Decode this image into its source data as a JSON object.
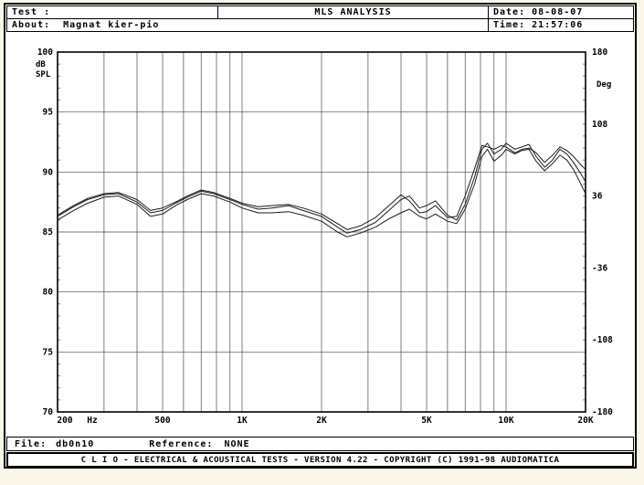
{
  "header": {
    "test_label": "Test :",
    "title": "MLS ANALYSIS",
    "date": "Date: 08-08-07",
    "about_label": "About:",
    "about_value": "Magnat kier-pio",
    "time": "Time: 21:57:06"
  },
  "file_bar": {
    "file_label": "File:",
    "file_value": "db0n10",
    "reference_label": "Reference:",
    "reference_value": "NONE"
  },
  "status_bar": {
    "text": "C L I O  -  ELECTRICAL & ACOUSTICAL TESTS  -  VERSION 4.22  -  COPYRIGHT (C) 1991-98 AUDIOMATICA"
  },
  "colors": {
    "page": "#faf7ea",
    "background": "#ffffff",
    "frame": "#000000",
    "grid": "#4a4a4a",
    "minor_tick": "#666666",
    "curve": "#1c1c1c",
    "text": "#000000"
  },
  "chart_data": {
    "type": "line",
    "title": "MLS ANALYSIS",
    "x_scale": "log",
    "xlim": [
      200,
      20000
    ],
    "ylim_left": [
      70,
      100
    ],
    "ylim_right": [
      -180,
      180
    ],
    "ylabel_left_lines": [
      "dB",
      "SPL"
    ],
    "ylabel_right": "Deg",
    "x_unit": "Hz",
    "x_tick_labels": [
      "200",
      "500",
      "1K",
      "2K",
      "5K",
      "10K",
      "20K"
    ],
    "x_tick_freqs": [
      200,
      500,
      1000,
      2000,
      5000,
      10000,
      20000
    ],
    "y_ticks_left": [
      100,
      95,
      90,
      85,
      80,
      75,
      70
    ],
    "y_ticks_right": [
      180,
      108,
      36,
      -36,
      -108,
      -180
    ],
    "grid_freqs": [
      300,
      400,
      500,
      600,
      700,
      800,
      900,
      1000,
      2000,
      3000,
      4000,
      5000,
      6000,
      7000,
      8000,
      9000,
      10000,
      20000
    ],
    "grid_on": true,
    "legend": "none",
    "series": [
      {
        "name": "response-curve-1",
        "points": [
          [
            200,
            86.3
          ],
          [
            230,
            87.1
          ],
          [
            260,
            87.7
          ],
          [
            300,
            88.1
          ],
          [
            340,
            88.2
          ],
          [
            400,
            87.5
          ],
          [
            450,
            86.6
          ],
          [
            500,
            86.8
          ],
          [
            560,
            87.4
          ],
          [
            620,
            87.9
          ],
          [
            700,
            88.4
          ],
          [
            780,
            88.2
          ],
          [
            900,
            87.7
          ],
          [
            1000,
            87.3
          ],
          [
            1150,
            86.9
          ],
          [
            1300,
            87.0
          ],
          [
            1500,
            87.2
          ],
          [
            1700,
            86.8
          ],
          [
            2000,
            86.3
          ],
          [
            2300,
            85.4
          ],
          [
            2500,
            84.9
          ],
          [
            2800,
            85.2
          ],
          [
            3200,
            85.8
          ],
          [
            3600,
            86.8
          ],
          [
            4000,
            87.7
          ],
          [
            4300,
            88.0
          ],
          [
            4700,
            87.0
          ],
          [
            5000,
            87.2
          ],
          [
            5400,
            87.6
          ],
          [
            6000,
            86.4
          ],
          [
            6500,
            86.0
          ],
          [
            7000,
            87.3
          ],
          [
            7600,
            89.6
          ],
          [
            8100,
            91.9
          ],
          [
            8500,
            92.4
          ],
          [
            9000,
            91.5
          ],
          [
            9600,
            91.9
          ],
          [
            10000,
            92.4
          ],
          [
            10800,
            91.9
          ],
          [
            11500,
            92.1
          ],
          [
            12200,
            92.3
          ],
          [
            13000,
            91.3
          ],
          [
            14000,
            90.4
          ],
          [
            15000,
            91.0
          ],
          [
            16000,
            91.9
          ],
          [
            17000,
            91.5
          ],
          [
            18000,
            90.8
          ],
          [
            19000,
            90.0
          ],
          [
            20000,
            89.2
          ]
        ]
      },
      {
        "name": "response-curve-2",
        "points": [
          [
            200,
            86.0
          ],
          [
            230,
            86.8
          ],
          [
            260,
            87.4
          ],
          [
            300,
            87.9
          ],
          [
            340,
            88.0
          ],
          [
            400,
            87.3
          ],
          [
            450,
            86.3
          ],
          [
            500,
            86.5
          ],
          [
            560,
            87.2
          ],
          [
            620,
            87.7
          ],
          [
            700,
            88.2
          ],
          [
            780,
            88.0
          ],
          [
            900,
            87.5
          ],
          [
            1000,
            87.0
          ],
          [
            1150,
            86.6
          ],
          [
            1300,
            86.6
          ],
          [
            1500,
            86.7
          ],
          [
            1700,
            86.4
          ],
          [
            2000,
            85.9
          ],
          [
            2300,
            85.0
          ],
          [
            2500,
            84.6
          ],
          [
            2800,
            84.9
          ],
          [
            3200,
            85.4
          ],
          [
            3600,
            86.1
          ],
          [
            4000,
            86.6
          ],
          [
            4300,
            86.9
          ],
          [
            4700,
            86.3
          ],
          [
            5000,
            86.1
          ],
          [
            5400,
            86.5
          ],
          [
            6000,
            85.9
          ],
          [
            6500,
            85.7
          ],
          [
            7000,
            86.9
          ],
          [
            7600,
            89.0
          ],
          [
            8100,
            91.3
          ],
          [
            8500,
            91.9
          ],
          [
            9000,
            90.9
          ],
          [
            9600,
            91.4
          ],
          [
            10000,
            91.9
          ],
          [
            10800,
            91.5
          ],
          [
            11500,
            91.8
          ],
          [
            12200,
            91.9
          ],
          [
            13000,
            90.9
          ],
          [
            14000,
            90.1
          ],
          [
            15000,
            90.7
          ],
          [
            16000,
            91.4
          ],
          [
            17000,
            91.0
          ],
          [
            18000,
            90.2
          ],
          [
            19000,
            89.2
          ],
          [
            20000,
            88.2
          ]
        ]
      },
      {
        "name": "response-curve-3",
        "points": [
          [
            200,
            86.4
          ],
          [
            230,
            87.2
          ],
          [
            260,
            87.8
          ],
          [
            300,
            88.2
          ],
          [
            340,
            88.3
          ],
          [
            400,
            87.7
          ],
          [
            450,
            86.8
          ],
          [
            500,
            87.0
          ],
          [
            560,
            87.5
          ],
          [
            620,
            88.0
          ],
          [
            700,
            88.5
          ],
          [
            780,
            88.3
          ],
          [
            900,
            87.8
          ],
          [
            1000,
            87.4
          ],
          [
            1150,
            87.1
          ],
          [
            1300,
            87.2
          ],
          [
            1500,
            87.3
          ],
          [
            1700,
            87.0
          ],
          [
            2000,
            86.5
          ],
          [
            2300,
            85.7
          ],
          [
            2500,
            85.2
          ],
          [
            2800,
            85.5
          ],
          [
            3200,
            86.2
          ],
          [
            3600,
            87.2
          ],
          [
            4000,
            88.1
          ],
          [
            4300,
            87.6
          ],
          [
            4700,
            86.6
          ],
          [
            5000,
            86.7
          ],
          [
            5400,
            87.2
          ],
          [
            6000,
            86.2
          ],
          [
            6500,
            86.3
          ],
          [
            7000,
            88.0
          ],
          [
            7600,
            90.3
          ],
          [
            8100,
            92.2
          ],
          [
            8500,
            92.1
          ],
          [
            9000,
            91.9
          ],
          [
            9600,
            92.2
          ],
          [
            10000,
            92.1
          ],
          [
            10800,
            91.6
          ],
          [
            11500,
            91.9
          ],
          [
            12200,
            92.0
          ],
          [
            13000,
            91.6
          ],
          [
            14000,
            90.8
          ],
          [
            15000,
            91.4
          ],
          [
            16000,
            92.1
          ],
          [
            17000,
            91.8
          ],
          [
            18000,
            91.3
          ],
          [
            19000,
            90.7
          ],
          [
            20000,
            90.2
          ]
        ]
      }
    ]
  }
}
